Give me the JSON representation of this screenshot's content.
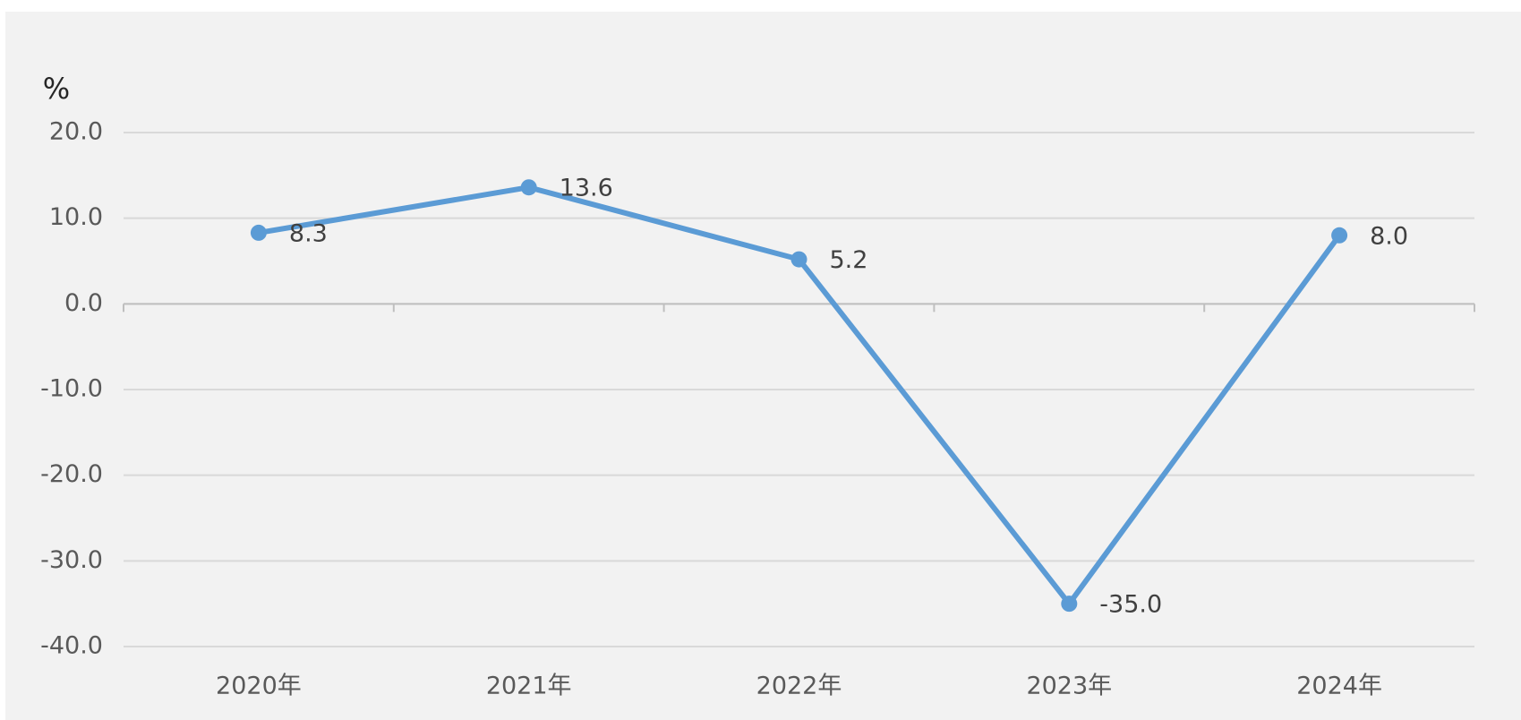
{
  "chart_data": {
    "type": "line",
    "y_unit_label": "%",
    "categories": [
      "2020年",
      "2021年",
      "2022年",
      "2023年",
      "2024年"
    ],
    "series": [
      {
        "name": null,
        "color": "#5b9bd5",
        "values": [
          8.3,
          13.6,
          5.2,
          -35.0,
          8.0
        ],
        "value_labels": [
          "8.3",
          "13.6",
          "5.2",
          "-35.0",
          "8.0"
        ]
      }
    ],
    "ylim": [
      -40,
      20
    ],
    "yticks": [
      {
        "value": -40,
        "label": "-40.0"
      },
      {
        "value": -30,
        "label": "-30.0"
      },
      {
        "value": -20,
        "label": "-20.0"
      },
      {
        "value": -10,
        "label": "-10.0"
      },
      {
        "value": 0,
        "label": "0.0"
      },
      {
        "value": 10,
        "label": "10.0"
      },
      {
        "value": 20,
        "label": "20.0"
      }
    ],
    "grid": true
  }
}
